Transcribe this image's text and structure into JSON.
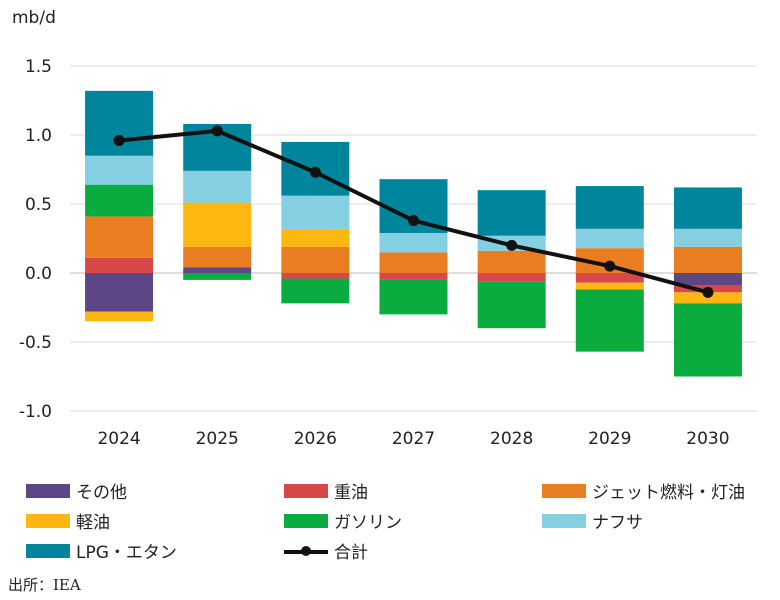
{
  "chart_data": {
    "type": "bar",
    "stacked": true,
    "ylabel": "mb/d",
    "ylim": [
      -1.0,
      1.5
    ],
    "yticks": [
      1.5,
      1.0,
      0.5,
      0.0,
      -0.5,
      -1.0
    ],
    "ytick_labels": [
      "1.5",
      "1.0",
      "0.5",
      "0.0",
      "-0.5",
      "-1.0"
    ],
    "categories": [
      "2024",
      "2025",
      "2026",
      "2027",
      "2028",
      "2029",
      "2030"
    ],
    "series": [
      {
        "name": "その他",
        "color": "#5e4585",
        "values": [
          -0.28,
          0.04,
          0.0,
          0.0,
          0.0,
          0.0,
          -0.09
        ]
      },
      {
        "name": "重油",
        "color": "#d94848",
        "values": [
          0.11,
          0.0,
          -0.04,
          -0.05,
          -0.06,
          -0.07,
          -0.05
        ]
      },
      {
        "name": "ジェット燃料・灯油",
        "color": "#e97d21",
        "values": [
          0.3,
          0.15,
          0.19,
          0.15,
          0.16,
          0.18,
          0.19
        ]
      },
      {
        "name": "軽油",
        "color": "#fcb711",
        "values": [
          -0.07,
          0.32,
          0.13,
          0.0,
          0.0,
          -0.05,
          -0.08
        ]
      },
      {
        "name": "ガソリン",
        "color": "#0aab3f",
        "values": [
          0.23,
          -0.05,
          -0.18,
          -0.25,
          -0.34,
          -0.45,
          -0.53
        ]
      },
      {
        "name": "ナフサ",
        "color": "#85cfe2",
        "values": [
          0.21,
          0.23,
          0.24,
          0.14,
          0.11,
          0.14,
          0.13
        ]
      },
      {
        "name": "LPG・エタン",
        "color": "#00859d",
        "values": [
          0.47,
          0.34,
          0.39,
          0.39,
          0.33,
          0.31,
          0.3
        ]
      }
    ],
    "line": {
      "name": "合計",
      "color": "#111111",
      "values": [
        0.96,
        1.03,
        0.73,
        0.38,
        0.2,
        0.05,
        -0.14
      ]
    }
  },
  "legend": {
    "items": [
      "その他",
      "重油",
      "ジェット燃料・灯油",
      "軽油",
      "ガソリン",
      "ナフサ",
      "LPG・エタン"
    ],
    "line_label": "合計"
  },
  "source": "出所：IEA"
}
